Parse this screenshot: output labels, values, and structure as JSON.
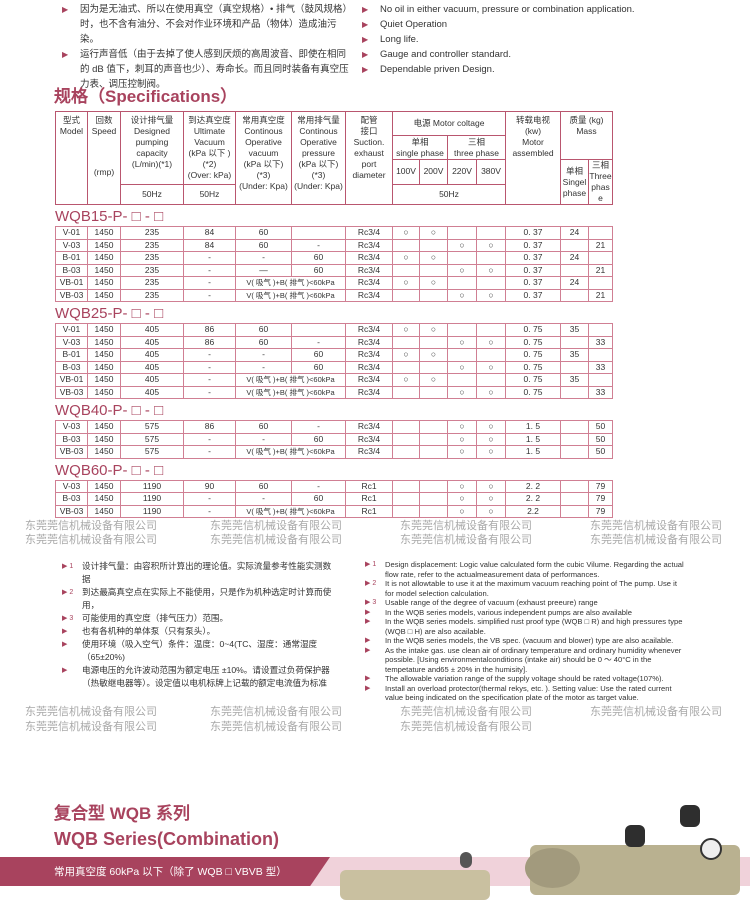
{
  "watermark": "东莞莞信机械设备有限公司",
  "features_cn": [
    "因为是无油式、所以在使用真空（真空规格）• 排气（鼓风规格）时，也不含有油分、不会对作业环境和产品（物体）造成油污染。",
    "运行声音低（由于去掉了使人感到厌烦的高周波音、即使在相同的 dB 值下，刺耳的声音也少）、寿命长。而且同时装备有真空压力表、调压控制阀。"
  ],
  "features_en": [
    "No oil in either vacuum, pressure or combination application.",
    "Quiet Operation",
    "Long life.",
    "Gauge and controller standard.",
    "Dependable priven Design."
  ],
  "spec_title": "规格（Specifications）",
  "header": {
    "model": [
      "型式",
      "Model"
    ],
    "speed": [
      "回数",
      "Speed",
      "(rmp)"
    ],
    "designed": [
      "设计排气量",
      "Designed",
      "pumping",
      "capacity",
      "(L/min)(*1)"
    ],
    "ultimate": [
      "到达真空度",
      "Ultimate",
      "Vacuum",
      "(kPa 以下 )",
      "(*2)",
      "(Over: kPa)"
    ],
    "cvac": [
      "常用真空度",
      "Continous",
      "Operative",
      "vacuum",
      "(kPa 以下)",
      "(*3)",
      "(Under: Kpa)"
    ],
    "cpress": [
      "常用排气量",
      "Continous",
      "Operative",
      "pressure",
      "(kPa 以下)",
      "(*3)",
      "(Under: Kpa)"
    ],
    "suction": [
      "配管",
      "接口",
      "Suction.",
      "exhaust",
      "port",
      "diameter"
    ],
    "power": "电源 Motor coltage",
    "single": [
      "单相",
      "single phase"
    ],
    "three": [
      "三相",
      "three phase"
    ],
    "volts": [
      "100V",
      "200V",
      "220V",
      "380V"
    ],
    "hz": "50Hz",
    "motor": [
      "转载电视",
      "(kw)",
      "Motor",
      "assembled"
    ],
    "mass": [
      "质量 (kg)",
      "Mass"
    ],
    "mass_single": [
      "单相",
      "Singel",
      "phase"
    ],
    "mass_three": [
      "三相",
      "Three",
      "phase"
    ]
  },
  "groups": [
    {
      "title": "WQB15-P- □ - □",
      "rows": [
        [
          "V-01",
          "1450",
          "235",
          "84",
          "60",
          "",
          "Rc3/4",
          "○",
          "○",
          "",
          "",
          "0. 37",
          "24",
          ""
        ],
        [
          "V-03",
          "1450",
          "235",
          "84",
          "60",
          "-",
          "Rc3/4",
          "",
          "",
          "○",
          "○",
          "0. 37",
          "",
          "21"
        ],
        [
          "B-01",
          "1450",
          "235",
          "-",
          "-",
          "60",
          "Rc3/4",
          "○",
          "○",
          "",
          "",
          "0. 37",
          "24",
          ""
        ],
        [
          "B-03",
          "1450",
          "235",
          "-",
          "—",
          "60",
          "Rc3/4",
          "",
          "",
          "○",
          "○",
          "0. 37",
          "",
          "21"
        ],
        [
          "VB-01",
          "1450",
          "235",
          "-",
          "V( 吸气 )+B( 排气 )<60kPa",
          "",
          "Rc3/4",
          "○",
          "○",
          "",
          "",
          "0. 37",
          "24",
          ""
        ],
        [
          "VB-03",
          "1450",
          "235",
          "-",
          "V( 吸气 )+B( 排气 )<60kPa",
          "",
          "Rc3/4",
          "",
          "",
          "○",
          "○",
          "0. 37",
          "",
          "21"
        ]
      ]
    },
    {
      "title": "WQB25-P- □ - □",
      "rows": [
        [
          "V-01",
          "1450",
          "405",
          "86",
          "60",
          "",
          "Rc3/4",
          "○",
          "○",
          "",
          "",
          "0. 75",
          "35",
          ""
        ],
        [
          "V-03",
          "1450",
          "405",
          "86",
          "60",
          "-",
          "Rc3/4",
          "",
          "",
          "○",
          "○",
          "0. 75",
          "",
          "33"
        ],
        [
          "B-01",
          "1450",
          "405",
          "-",
          "-",
          "60",
          "Rc3/4",
          "○",
          "○",
          "",
          "",
          "0. 75",
          "35",
          ""
        ],
        [
          "B-03",
          "1450",
          "405",
          "-",
          "-",
          "60",
          "Rc3/4",
          "",
          "",
          "○",
          "○",
          "0. 75",
          "",
          "33"
        ],
        [
          "VB-01",
          "1450",
          "405",
          "-",
          "V( 吸气 )+B( 排气 )<60kPa",
          "",
          "Rc3/4",
          "○",
          "○",
          "",
          "",
          "0. 75",
          "35",
          ""
        ],
        [
          "VB-03",
          "1450",
          "405",
          "-",
          "V( 吸气 )+B( 排气 )<60kPa",
          "",
          "Rc3/4",
          "",
          "",
          "○",
          "○",
          "0. 75",
          "",
          "33"
        ]
      ]
    },
    {
      "title": "WQB40-P- □ - □",
      "rows": [
        [
          "V-03",
          "1450",
          "575",
          "86",
          "60",
          "-",
          "Rc3/4",
          "",
          "",
          "○",
          "○",
          "1. 5",
          "",
          "50"
        ],
        [
          "B-03",
          "1450",
          "575",
          "-",
          "-",
          "60",
          "Rc3/4",
          "",
          "",
          "○",
          "○",
          "1. 5",
          "",
          "50"
        ],
        [
          "VB-03",
          "1450",
          "575",
          "-",
          "V( 吸气 )+B( 排气 )<60kPa",
          "",
          "Rc3/4",
          "",
          "",
          "○",
          "○",
          "1. 5",
          "",
          "50"
        ]
      ]
    },
    {
      "title": "WQB60-P- □ - □",
      "rows": [
        [
          "V-03",
          "1450",
          "1190",
          "90",
          "60",
          "-",
          "Rc1",
          "",
          "",
          "○",
          "○",
          "2. 2",
          "",
          "79"
        ],
        [
          "B-03",
          "1450",
          "1190",
          "-",
          "-",
          "60",
          "Rc1",
          "",
          "",
          "○",
          "○",
          "2. 2",
          "",
          "79"
        ],
        [
          "VB-03",
          "1450",
          "1190",
          "-",
          "V( 吸气 )+B( 排气 )<60kPa",
          "",
          "Rc1",
          "",
          "",
          "○",
          "○",
          "2.2",
          "",
          "79"
        ]
      ]
    }
  ],
  "notes_cn": [
    {
      "m": "1",
      "t": "设计排气量：由容积所计算出的理论值。实际流量参考性能实测数据"
    },
    {
      "m": "2",
      "t": "到达最高真空点在实际上不能使用，只是作为机种选定时计算而使用，"
    },
    {
      "m": "3",
      "t": "可能使用的真空度（排气压力）范围。"
    },
    {
      "m": "",
      "t": "也有各机种的单体泵（只有泵头）。"
    },
    {
      "m": "",
      "t": "使用环境（吸入空气）条件：温度：0~4(TC、湿度：通常湿度（65±20%)"
    },
    {
      "m": "",
      "t": "电源电压的允许波动范围为额定电压 ±10%。请设置过负荷保护器（热敏继电器等）。设定值以电机标牌上记载的额定电流值为标准"
    }
  ],
  "notes_en": [
    {
      "m": "1",
      "t": "Design displacement: Logic value calculated form the cubic Vilume. Regarding the actual flow rate, refer to the actualmeasurement data of performances."
    },
    {
      "m": "2",
      "t": "It is not allowtable to use it at the maximum vacuum reaching point of The pump. Use it for model selection calculation."
    },
    {
      "m": "3",
      "t": "Usable range of the degree of vacuum (exhaust preeure) range"
    },
    {
      "m": "",
      "t": "In the WQB series models, various independent pumps are also available"
    },
    {
      "m": "",
      "t": "In the WQB series models. simplified rust proof type (WQB □ R) and high pressures type (WQB □ H) are also acailable."
    },
    {
      "m": "",
      "t": "In the WQB series models, the VB spec. (vacuum and blower) type are also acailable."
    },
    {
      "m": "",
      "t": "As the intake gas. use clean air of ordinary temperature and ordinary humidity whenever possible. [Using environmentalconditions (intake air) should be 0 ～ 40°C in the tempetature and65 ± 20% in the humisity]."
    },
    {
      "m": "",
      "t": "The allowable variation range of the supply voltage should be rated voltage(107%)."
    },
    {
      "m": "",
      "t": "Install an overload protector(thermal rekys, etc. ). Setting value: Use the rated current value being indicated on the specification plate of the motor as target value."
    }
  ],
  "bottom": {
    "title_cn": "复合型 WQB 系列",
    "title_en": "WQB Series(Combination)",
    "band": "常用真空度 60kPa 以下（除了 WQB □ VBVB 型）"
  },
  "colors": {
    "accent": "#a8435e",
    "band_light": "#f0d2da"
  }
}
